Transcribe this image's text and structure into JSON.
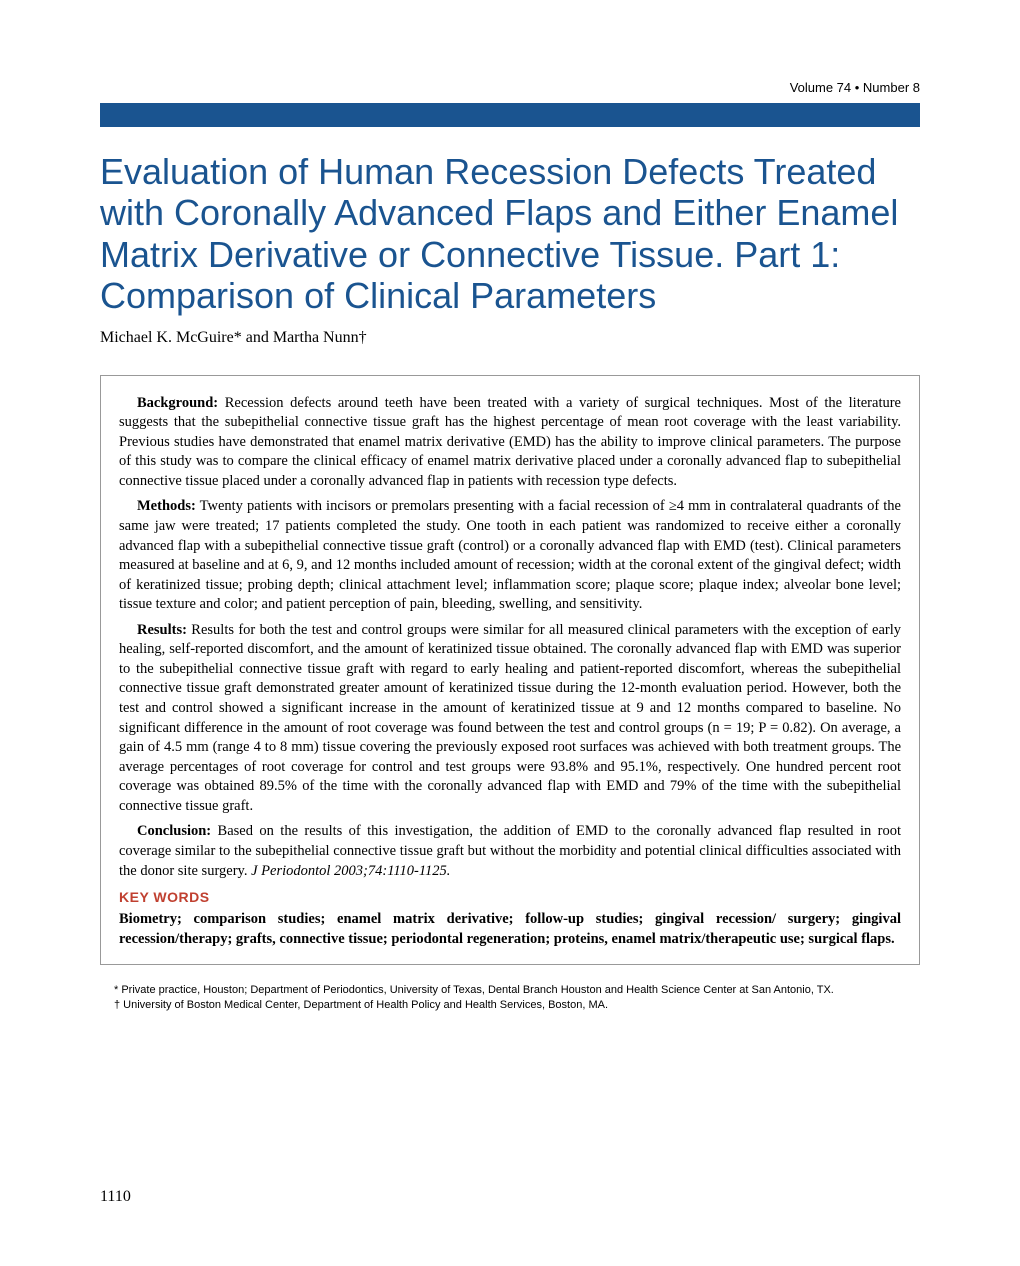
{
  "header": {
    "volume_text": "Volume 74 • Number 8"
  },
  "title": "Evaluation of Human Recession Defects Treated with Coronally Advanced Flaps and Either Enamel Matrix Derivative or Connective Tissue. Part 1: Comparison of Clinical Parameters",
  "authors": "Michael K. McGuire* and Martha Nunn†",
  "abstract": {
    "background_label": "Background:",
    "background_text": " Recession defects around teeth have been treated with a variety of surgical techniques. Most of the literature suggests that the subepithelial connective tissue graft has the highest percentage of mean root coverage with the least variability. Previous studies have demonstrated that enamel matrix derivative (EMD) has the ability to improve clinical parameters. The purpose of this study was to compare the clinical efficacy of enamel matrix derivative placed under a coronally advanced flap to subepithelial connective tissue placed under a coronally advanced flap in patients with recession type defects.",
    "methods_label": "Methods:",
    "methods_text": " Twenty patients with incisors or premolars presenting with a facial recession of ≥4 mm in contralateral quadrants of the same jaw were treated; 17 patients completed the study. One tooth in each patient was randomized to receive either a coronally advanced flap with a subepithelial connective tissue graft (control) or a coronally advanced flap with EMD (test). Clinical parameters measured at baseline and at 6, 9, and 12 months included amount of recession; width at the coronal extent of the gingival defect; width of keratinized tissue; probing depth; clinical attachment level; inflammation score; plaque score; plaque index; alveolar bone level; tissue texture and color; and patient perception of pain, bleeding, swelling, and sensitivity.",
    "results_label": "Results:",
    "results_text": " Results for both the test and control groups were similar for all measured clinical parameters with the exception of early healing, self-reported discomfort, and the amount of keratinized tissue obtained. The coronally advanced flap with EMD was superior to the subepithelial connective tissue graft with regard to early healing and patient-reported discomfort, whereas the subepithelial connective tissue graft demonstrated greater amount of keratinized tissue during the 12-month evaluation period. However, both the test and control showed a significant increase in the amount of keratinized tissue at 9 and 12 months compared to baseline. No significant difference in the amount of root coverage was found between the test and control groups (n = 19; P = 0.82). On average, a gain of 4.5 mm (range 4 to 8 mm) tissue covering the previously exposed root surfaces was achieved with both treatment groups. The average percentages of root coverage for control and test groups were 93.8% and 95.1%, respectively. One hundred percent root coverage was obtained 89.5% of the time with the coronally advanced flap with EMD and 79% of the time with the subepithelial connective tissue graft.",
    "conclusion_label": "Conclusion:",
    "conclusion_text": " Based on the results of this investigation, the addition of EMD to the coronally advanced flap resulted in root coverage similar to the subepithelial connective tissue graft but without the morbidity and potential clinical difficulties associated with the donor site surgery. ",
    "citation": "J Periodontol 2003;74:1110-1125."
  },
  "keywords": {
    "label": "KEY WORDS",
    "text": "Biometry; comparison studies; enamel matrix derivative; follow-up studies; gingival recession/ surgery; gingival recession/therapy; grafts, connective tissue; periodontal regeneration; proteins, enamel matrix/therapeutic use; surgical flaps."
  },
  "footnotes": {
    "line1": "* Private practice, Houston; Department of Periodontics, University of Texas, Dental Branch Houston and Health Science Center at San Antonio, TX.",
    "line2": "† University of Boston Medical Center, Department of Health Policy and Health Services, Boston, MA."
  },
  "page_number": "1110",
  "colors": {
    "title_color": "#1a5490",
    "bar_color": "#1a5490",
    "keywords_label_color": "#c04030",
    "background": "#ffffff",
    "border_color": "#999999"
  },
  "typography": {
    "title_fontsize": 36,
    "body_fontsize": 14.5,
    "authors_fontsize": 16,
    "footnote_fontsize": 11
  }
}
